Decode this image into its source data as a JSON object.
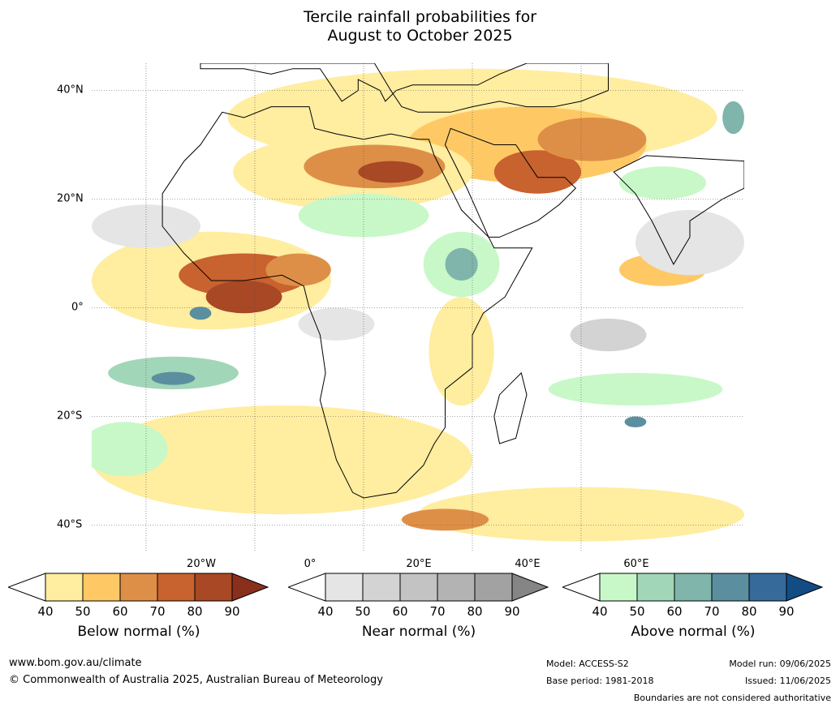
{
  "title_line1": "Tercile rainfall probabilities for",
  "title_line2": "August to October 2025",
  "lat_labels": [
    "40°N",
    "20°N",
    "0°",
    "20°S",
    "40°S"
  ],
  "lon_labels": [
    "20°W",
    "0°",
    "20°E",
    "40°E",
    "60°E"
  ],
  "legend": {
    "below": {
      "label": "Below normal (%)",
      "ticks": [
        "40",
        "50",
        "60",
        "70",
        "80",
        "90"
      ],
      "colors": [
        "#ffeda0",
        "#fec965",
        "#de8f47",
        "#c8622e",
        "#a84825",
        "#8a2f1b"
      ]
    },
    "near": {
      "label": "Near normal (%)",
      "ticks": [
        "40",
        "50",
        "60",
        "70",
        "80",
        "90"
      ],
      "colors": [
        "#e5e5e5",
        "#d3d3d3",
        "#c3c3c3",
        "#b3b3b3",
        "#a2a2a2",
        "#858585"
      ]
    },
    "above": {
      "label": "Above normal (%)",
      "ticks": [
        "40",
        "50",
        "60",
        "70",
        "80",
        "90"
      ],
      "colors": [
        "#c8f8c8",
        "#a2d6b8",
        "#7fb5ab",
        "#5b8f9f",
        "#366a9a",
        "#134b85"
      ]
    }
  },
  "footer": {
    "website": "www.bom.gov.au/climate",
    "copyright": "© Commonwealth of Australia 2025, Australian Bureau of Meteorology",
    "model": "Model: ACCESS-S2",
    "base_period": "Base period: 1981-2018",
    "model_run": "Model run: 09/06/2025",
    "issued": "Issued: 11/06/2025",
    "disclaimer": "Boundaries are not considered authoritative"
  },
  "map": {
    "extent": {
      "lon_min": -30,
      "lon_max": 90,
      "lat_min": -45,
      "lat_max": 45
    },
    "regions": [
      {
        "category": "below",
        "level": 1,
        "lon": 40,
        "lat": 35,
        "rx": 45,
        "ry": 9
      },
      {
        "category": "below",
        "level": 2,
        "lon": 50,
        "lat": 30,
        "rx": 22,
        "ry": 7
      },
      {
        "category": "below",
        "level": 4,
        "lon": 52,
        "lat": 25,
        "rx": 8,
        "ry": 4
      },
      {
        "category": "below",
        "level": 3,
        "lon": 62,
        "lat": 31,
        "rx": 10,
        "ry": 4
      },
      {
        "category": "below",
        "level": 1,
        "lon": 18,
        "lat": 25,
        "rx": 22,
        "ry": 7
      },
      {
        "category": "below",
        "level": 3,
        "lon": 22,
        "lat": 26,
        "rx": 13,
        "ry": 4
      },
      {
        "category": "below",
        "level": 5,
        "lon": 25,
        "lat": 25,
        "rx": 6,
        "ry": 2
      },
      {
        "category": "below",
        "level": 1,
        "lon": -8,
        "lat": 5,
        "rx": 22,
        "ry": 9
      },
      {
        "category": "below",
        "level": 4,
        "lon": -2,
        "lat": 6,
        "rx": 12,
        "ry": 4
      },
      {
        "category": "below",
        "level": 5,
        "lon": -2,
        "lat": 2,
        "rx": 7,
        "ry": 3
      },
      {
        "category": "below",
        "level": 3,
        "lon": 8,
        "lat": 7,
        "rx": 6,
        "ry": 3
      },
      {
        "category": "below",
        "level": 1,
        "lon": 38,
        "lat": -8,
        "rx": 6,
        "ry": 10
      },
      {
        "category": "below",
        "level": 1,
        "lon": 5,
        "lat": -28,
        "rx": 35,
        "ry": 10
      },
      {
        "category": "below",
        "level": 1,
        "lon": 60,
        "lat": -38,
        "rx": 30,
        "ry": 5
      },
      {
        "category": "below",
        "level": 3,
        "lon": 35,
        "lat": -39,
        "rx": 8,
        "ry": 2
      },
      {
        "category": "below",
        "level": 2,
        "lon": 75,
        "lat": 7,
        "rx": 8,
        "ry": 3
      },
      {
        "category": "near",
        "level": 1,
        "lon": -20,
        "lat": 15,
        "rx": 10,
        "ry": 4
      },
      {
        "category": "near",
        "level": 1,
        "lon": 80,
        "lat": 12,
        "rx": 10,
        "ry": 6
      },
      {
        "category": "near",
        "level": 2,
        "lon": 65,
        "lat": -5,
        "rx": 7,
        "ry": 3
      },
      {
        "category": "near",
        "level": 1,
        "lon": 15,
        "lat": -3,
        "rx": 7,
        "ry": 3
      },
      {
        "category": "above",
        "level": 1,
        "lon": 38,
        "lat": 8,
        "rx": 7,
        "ry": 6
      },
      {
        "category": "above",
        "level": 3,
        "lon": 38,
        "lat": 8,
        "rx": 3,
        "ry": 3
      },
      {
        "category": "above",
        "level": 1,
        "lon": 20,
        "lat": 17,
        "rx": 12,
        "ry": 4
      },
      {
        "category": "above",
        "level": 2,
        "lon": -15,
        "lat": -12,
        "rx": 12,
        "ry": 3
      },
      {
        "category": "above",
        "level": 4,
        "lon": -15,
        "lat": -13,
        "rx": 4,
        "ry": 1.2
      },
      {
        "category": "above",
        "level": 4,
        "lon": -10,
        "lat": -1,
        "rx": 2,
        "ry": 1.2
      },
      {
        "category": "above",
        "level": 1,
        "lon": 75,
        "lat": 23,
        "rx": 8,
        "ry": 3
      },
      {
        "category": "above",
        "level": 3,
        "lon": 88,
        "lat": 35,
        "rx": 2,
        "ry": 3
      },
      {
        "category": "above",
        "level": 1,
        "lon": 70,
        "lat": -15,
        "rx": 16,
        "ry": 3
      },
      {
        "category": "above",
        "level": 1,
        "lon": -24,
        "lat": -26,
        "rx": 8,
        "ry": 5
      },
      {
        "category": "above",
        "level": 4,
        "lon": 70,
        "lat": -21,
        "rx": 2,
        "ry": 1
      }
    ],
    "coastline": [
      [
        -17,
        21
      ],
      [
        -17,
        15
      ],
      [
        -13,
        10
      ],
      [
        -8,
        5
      ],
      [
        -2,
        5
      ],
      [
        5,
        6
      ],
      [
        9,
        4
      ],
      [
        10,
        0
      ],
      [
        12,
        -5
      ],
      [
        13,
        -12
      ],
      [
        12,
        -17
      ],
      [
        15,
        -28
      ],
      [
        18,
        -34
      ],
      [
        20,
        -35
      ],
      [
        26,
        -34
      ],
      [
        31,
        -29
      ],
      [
        33,
        -25
      ],
      [
        35,
        -22
      ],
      [
        35,
        -15
      ],
      [
        40,
        -11
      ],
      [
        40,
        -5
      ],
      [
        42,
        -1
      ],
      [
        46,
        2
      ],
      [
        51,
        11
      ],
      [
        44,
        11
      ],
      [
        43,
        13
      ],
      [
        38,
        18
      ],
      [
        35,
        24
      ],
      [
        33,
        28
      ],
      [
        32,
        31
      ],
      [
        30,
        31
      ],
      [
        25,
        32
      ],
      [
        20,
        31
      ],
      [
        15,
        32
      ],
      [
        11,
        33
      ],
      [
        10,
        37
      ],
      [
        3,
        37
      ],
      [
        -2,
        35
      ],
      [
        -6,
        36
      ],
      [
        -10,
        30
      ],
      [
        -13,
        27
      ],
      [
        -17,
        21
      ]
    ],
    "arabia": [
      [
        35,
        30
      ],
      [
        39,
        22
      ],
      [
        43,
        13
      ],
      [
        45,
        13
      ],
      [
        52,
        16
      ],
      [
        56,
        19
      ],
      [
        59,
        22
      ],
      [
        57,
        24
      ],
      [
        52,
        24
      ],
      [
        50,
        27
      ],
      [
        48,
        30
      ],
      [
        44,
        30
      ],
      [
        36,
        33
      ],
      [
        35,
        30
      ]
    ],
    "madagascar": [
      [
        49,
        -12
      ],
      [
        50,
        -16
      ],
      [
        48,
        -24
      ],
      [
        45,
        -25
      ],
      [
        44,
        -20
      ],
      [
        45,
        -16
      ],
      [
        49,
        -12
      ]
    ],
    "india": [
      [
        66,
        25
      ],
      [
        70,
        21
      ],
      [
        73,
        16
      ],
      [
        77,
        8
      ],
      [
        80,
        13
      ],
      [
        80,
        16
      ],
      [
        86,
        20
      ],
      [
        90,
        22
      ],
      [
        90,
        27
      ],
      [
        72,
        28
      ],
      [
        66,
        25
      ]
    ],
    "europe": [
      [
        -10,
        44
      ],
      [
        -2,
        44
      ],
      [
        3,
        43
      ],
      [
        7,
        44
      ],
      [
        12,
        44
      ],
      [
        14,
        41
      ],
      [
        16,
        38
      ],
      [
        19,
        40
      ],
      [
        19,
        42
      ],
      [
        23,
        40
      ],
      [
        24,
        38
      ],
      [
        26,
        40
      ],
      [
        29,
        41
      ],
      [
        36,
        41
      ],
      [
        41,
        41
      ],
      [
        45,
        43
      ],
      [
        50,
        45
      ],
      [
        60,
        45
      ],
      [
        65,
        45
      ],
      [
        65,
        40
      ],
      [
        60,
        38
      ],
      [
        55,
        37
      ],
      [
        50,
        37
      ],
      [
        45,
        38
      ],
      [
        40,
        37
      ],
      [
        36,
        36
      ],
      [
        30,
        36
      ],
      [
        27,
        37
      ],
      [
        25,
        40
      ],
      [
        22,
        45
      ],
      [
        -10,
        45
      ],
      [
        -10,
        44
      ]
    ]
  }
}
